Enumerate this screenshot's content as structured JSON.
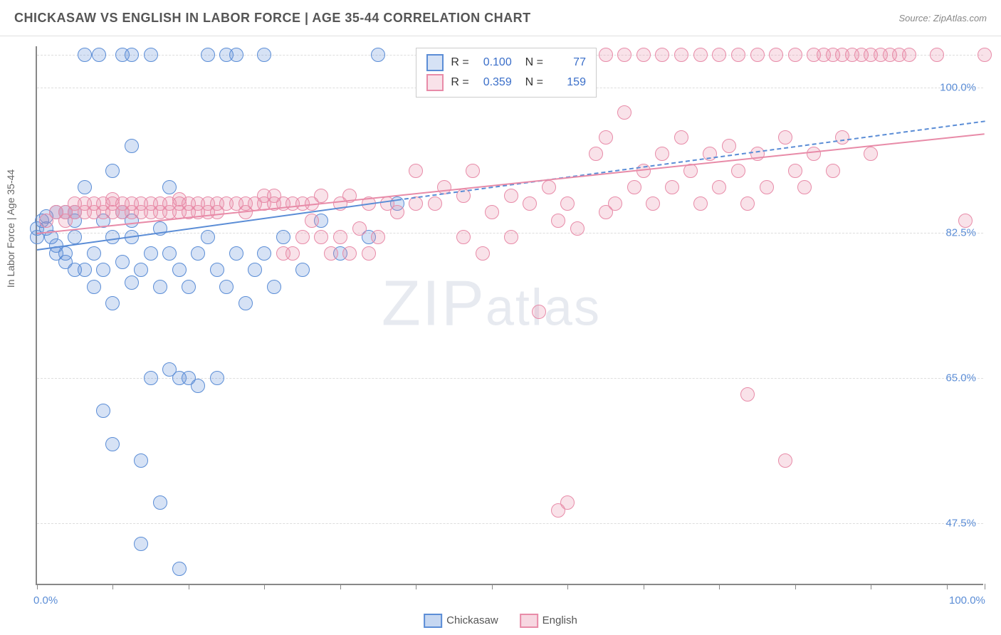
{
  "title": "CHICKASAW VS ENGLISH IN LABOR FORCE | AGE 35-44 CORRELATION CHART",
  "source": "Source: ZipAtlas.com",
  "y_axis_label": "In Labor Force | Age 35-44",
  "watermark": "ZIPatlas",
  "chart": {
    "type": "scatter",
    "background_color": "#ffffff",
    "grid_color": "#dddddd",
    "axis_color": "#888888",
    "label_color": "#5b8dd6",
    "xlim": [
      0,
      100
    ],
    "ylim": [
      40,
      105
    ],
    "y_ticks": [
      {
        "value": 47.5,
        "label": "47.5%"
      },
      {
        "value": 65.0,
        "label": "65.0%"
      },
      {
        "value": 82.5,
        "label": "82.5%"
      },
      {
        "value": 100.0,
        "label": "100.0%"
      }
    ],
    "x_ticks": [
      0,
      8,
      16,
      24,
      32,
      40,
      48,
      56,
      64,
      72,
      80,
      88,
      96,
      100
    ],
    "x_tick_labels": [
      {
        "value": 0,
        "label": "0.0%"
      },
      {
        "value": 100,
        "label": "100.0%"
      }
    ],
    "marker_radius": 9,
    "marker_stroke_width": 1.5,
    "marker_fill_opacity": 0.25
  },
  "series": [
    {
      "name": "Chickasaw",
      "color": "#5b8dd6",
      "fill": "rgba(91,141,214,0.25)",
      "R": "0.100",
      "N": "77",
      "trend": {
        "x1": 0,
        "y1": 80.5,
        "x2": 38,
        "y2": 86.5,
        "solid": true
      },
      "trend_ext": {
        "x1": 38,
        "y1": 86.5,
        "x2": 100,
        "y2": 96
      },
      "points": [
        [
          0,
          82
        ],
        [
          0,
          83
        ],
        [
          0.5,
          84
        ],
        [
          1,
          84.5
        ],
        [
          1,
          83
        ],
        [
          1.5,
          82
        ],
        [
          2,
          80
        ],
        [
          2,
          81
        ],
        [
          2,
          85
        ],
        [
          3,
          79
        ],
        [
          3,
          80
        ],
        [
          3,
          85
        ],
        [
          4,
          78
        ],
        [
          4,
          82
        ],
        [
          4,
          84
        ],
        [
          4,
          85
        ],
        [
          5,
          78
        ],
        [
          5,
          88
        ],
        [
          5,
          104
        ],
        [
          6,
          76
        ],
        [
          6,
          80
        ],
        [
          6.5,
          104
        ],
        [
          7,
          78
        ],
        [
          7,
          84
        ],
        [
          7,
          61
        ],
        [
          8,
          74
        ],
        [
          8,
          82
        ],
        [
          8,
          90
        ],
        [
          8,
          57
        ],
        [
          9,
          79
        ],
        [
          9,
          85
        ],
        [
          9,
          104
        ],
        [
          10,
          76.5
        ],
        [
          10,
          82
        ],
        [
          10,
          84
        ],
        [
          10,
          93
        ],
        [
          10,
          104
        ],
        [
          11,
          78
        ],
        [
          11,
          55
        ],
        [
          11,
          45
        ],
        [
          12,
          80
        ],
        [
          12,
          65
        ],
        [
          12,
          104
        ],
        [
          13,
          76
        ],
        [
          13,
          83
        ],
        [
          13,
          50
        ],
        [
          14,
          80
        ],
        [
          14,
          88
        ],
        [
          14,
          66
        ],
        [
          15,
          78
        ],
        [
          15,
          65
        ],
        [
          15,
          42
        ],
        [
          16,
          65
        ],
        [
          16,
          76
        ],
        [
          17,
          80
        ],
        [
          17,
          64
        ],
        [
          18,
          82
        ],
        [
          18,
          104
        ],
        [
          19,
          78
        ],
        [
          19,
          65
        ],
        [
          20,
          76
        ],
        [
          20,
          104
        ],
        [
          21,
          80
        ],
        [
          21,
          104
        ],
        [
          22,
          74
        ],
        [
          23,
          78
        ],
        [
          24,
          80
        ],
        [
          24,
          104
        ],
        [
          25,
          76
        ],
        [
          26,
          82
        ],
        [
          28,
          78
        ],
        [
          30,
          84
        ],
        [
          32,
          80
        ],
        [
          35,
          82
        ],
        [
          36,
          104
        ],
        [
          38,
          86
        ]
      ]
    },
    {
      "name": "English",
      "color": "#e88ba8",
      "fill": "rgba(232,139,168,0.25)",
      "R": "0.359",
      "N": "159",
      "trend": {
        "x1": 0,
        "y1": 82.5,
        "x2": 100,
        "y2": 94.5,
        "solid": true
      },
      "points": [
        [
          1,
          84
        ],
        [
          2,
          85
        ],
        [
          3,
          84
        ],
        [
          3,
          85
        ],
        [
          4,
          85
        ],
        [
          4,
          86
        ],
        [
          5,
          85
        ],
        [
          5,
          86
        ],
        [
          6,
          85
        ],
        [
          6,
          86
        ],
        [
          7,
          85
        ],
        [
          7,
          86
        ],
        [
          8,
          85
        ],
        [
          8,
          86
        ],
        [
          8,
          86.5
        ],
        [
          9,
          85
        ],
        [
          9,
          86
        ],
        [
          10,
          85
        ],
        [
          10,
          86
        ],
        [
          11,
          85
        ],
        [
          11,
          86
        ],
        [
          12,
          85
        ],
        [
          12,
          86
        ],
        [
          13,
          85
        ],
        [
          13,
          86
        ],
        [
          14,
          85
        ],
        [
          14,
          86
        ],
        [
          15,
          85
        ],
        [
          15,
          86
        ],
        [
          15,
          86.5
        ],
        [
          16,
          85
        ],
        [
          16,
          86
        ],
        [
          17,
          85
        ],
        [
          17,
          86
        ],
        [
          18,
          85
        ],
        [
          18,
          86
        ],
        [
          19,
          85
        ],
        [
          19,
          86
        ],
        [
          20,
          86
        ],
        [
          21,
          86
        ],
        [
          22,
          85
        ],
        [
          22,
          86
        ],
        [
          23,
          86
        ],
        [
          24,
          86
        ],
        [
          24,
          87
        ],
        [
          25,
          86
        ],
        [
          25,
          87
        ],
        [
          26,
          86
        ],
        [
          26,
          80
        ],
        [
          27,
          80
        ],
        [
          27,
          86
        ],
        [
          28,
          82
        ],
        [
          28,
          86
        ],
        [
          29,
          84
        ],
        [
          29,
          86
        ],
        [
          30,
          82
        ],
        [
          30,
          87
        ],
        [
          31,
          80
        ],
        [
          32,
          82
        ],
        [
          32,
          86
        ],
        [
          33,
          80
        ],
        [
          33,
          87
        ],
        [
          34,
          83
        ],
        [
          35,
          80
        ],
        [
          35,
          86
        ],
        [
          36,
          82
        ],
        [
          37,
          86
        ],
        [
          38,
          85
        ],
        [
          40,
          86
        ],
        [
          40,
          90
        ],
        [
          42,
          86
        ],
        [
          43,
          88
        ],
        [
          45,
          82
        ],
        [
          45,
          87
        ],
        [
          46,
          90
        ],
        [
          47,
          80
        ],
        [
          48,
          85
        ],
        [
          48,
          104
        ],
        [
          50,
          82
        ],
        [
          50,
          87
        ],
        [
          52,
          86
        ],
        [
          52,
          104
        ],
        [
          53,
          73
        ],
        [
          54,
          88
        ],
        [
          55,
          84
        ],
        [
          55,
          49
        ],
        [
          56,
          86
        ],
        [
          56,
          50
        ],
        [
          57,
          83
        ],
        [
          57,
          102
        ],
        [
          58,
          104
        ],
        [
          59,
          92
        ],
        [
          60,
          85
        ],
        [
          60,
          94
        ],
        [
          60,
          104
        ],
        [
          61,
          86
        ],
        [
          62,
          97
        ],
        [
          62,
          104
        ],
        [
          63,
          88
        ],
        [
          64,
          90
        ],
        [
          64,
          104
        ],
        [
          65,
          86
        ],
        [
          66,
          92
        ],
        [
          66,
          104
        ],
        [
          67,
          88
        ],
        [
          68,
          94
        ],
        [
          68,
          104
        ],
        [
          69,
          90
        ],
        [
          70,
          86
        ],
        [
          70,
          104
        ],
        [
          71,
          92
        ],
        [
          72,
          88
        ],
        [
          72,
          104
        ],
        [
          73,
          93
        ],
        [
          74,
          90
        ],
        [
          74,
          104
        ],
        [
          75,
          86
        ],
        [
          75,
          63
        ],
        [
          76,
          92
        ],
        [
          76,
          104
        ],
        [
          77,
          88
        ],
        [
          78,
          104
        ],
        [
          79,
          94
        ],
        [
          79,
          55
        ],
        [
          80,
          90
        ],
        [
          80,
          104
        ],
        [
          81,
          88
        ],
        [
          82,
          92
        ],
        [
          82,
          104
        ],
        [
          83,
          104
        ],
        [
          84,
          90
        ],
        [
          84,
          104
        ],
        [
          85,
          94
        ],
        [
          85,
          104
        ],
        [
          86,
          104
        ],
        [
          87,
          104
        ],
        [
          88,
          92
        ],
        [
          88,
          104
        ],
        [
          89,
          104
        ],
        [
          90,
          104
        ],
        [
          91,
          104
        ],
        [
          92,
          104
        ],
        [
          95,
          104
        ],
        [
          98,
          84
        ],
        [
          100,
          104
        ]
      ]
    }
  ],
  "bottom_legend": [
    {
      "label": "Chickasaw",
      "color": "#5b8dd6",
      "fill": "rgba(91,141,214,0.35)"
    },
    {
      "label": "English",
      "color": "#e88ba8",
      "fill": "rgba(232,139,168,0.35)"
    }
  ]
}
